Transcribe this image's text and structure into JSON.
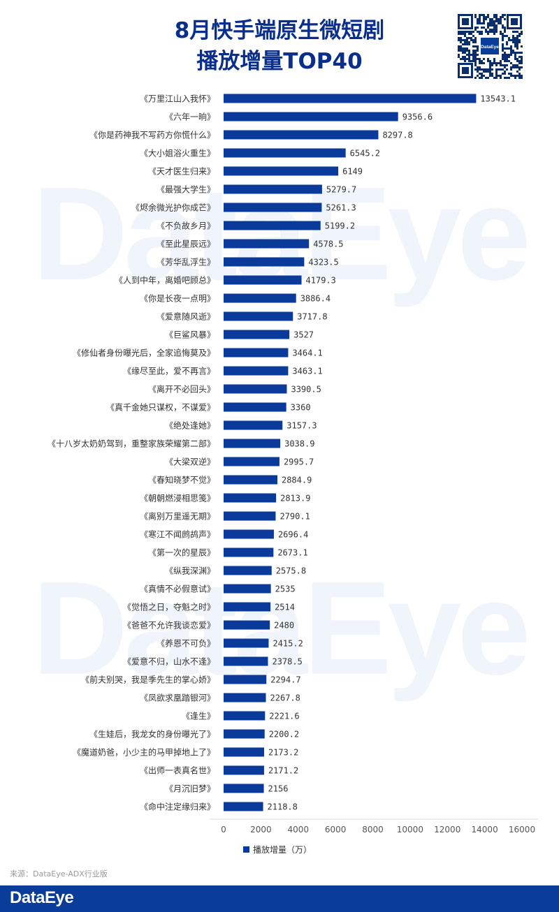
{
  "header": {
    "title_line1": "8月快手端原生微短剧",
    "title_line2": "播放增量TOP40"
  },
  "watermark": "DataEye",
  "qr": {
    "logo_text": "DataEye"
  },
  "footer": {
    "source": "来源：DataEye-ADX行业版",
    "brand": "DataEye"
  },
  "colors": {
    "bar": "#0a3a9a",
    "title": "#0a2e8c",
    "footer": "#0a3d9a"
  },
  "chart_data": {
    "type": "bar",
    "orientation": "horizontal",
    "categories": [
      "《万里江山入我怀》",
      "《六年一晌》",
      "《你是药神我不写药方你慌什么》",
      "《大小姐浴火重生》",
      "《天才医生归来》",
      "《最强大学生》",
      "《烬余微光护你成芒》",
      "《不负故乡月》",
      "《至此星辰远》",
      "《芳华乱浮生》",
      "《人到中年，离婚吧顾总》",
      "《你是长夜一点明》",
      "《爱意随风逝》",
      "《巨鲨风暴》",
      "《修仙者身份曝光后，全家追悔莫及》",
      "《缘尽至此，爱不再言》",
      "《离开不必回头》",
      "《真千金她只谋权，不谋爱》",
      "《绝处逢她》",
      "《十八岁太奶奶驾到，重整家族荣耀第二部》",
      "《大梁双逆》",
      "《春知晓梦不觉》",
      "《朝朝燃浸相思笺》",
      "《离别万里遥无期》",
      "《寒江不闻鹧鸪声》",
      "《第一次的星辰》",
      "《纵我深渊》",
      "《真情不必假意试》",
      "《觉悟之日，夺魁之时》",
      "《爸爸不允许我谈恋爱》",
      "《养恩不可负》",
      "《爱意不归，山水不逢》",
      "《前夫别哭，我是季先生的掌心娇》",
      "《凤欲求凰踏银河》",
      "《逢生》",
      "《生娃后，我龙女的身份曝光了》",
      "《魔道奶爸，小少主的马甲掉地上了》",
      "《出师一表真名世》",
      "《月沉旧梦》",
      "《命中注定缘归来》"
    ],
    "values": [
      13543.1,
      9356.6,
      8297.8,
      6545.2,
      6149,
      5279.7,
      5261.3,
      5199.2,
      4578.5,
      4323.5,
      4179.3,
      3886.4,
      3717.8,
      3527,
      3464.1,
      3463.1,
      3390.5,
      3360,
      3157.3,
      3038.9,
      2995.7,
      2884.9,
      2813.9,
      2790.1,
      2696.4,
      2673.1,
      2575.8,
      2535,
      2514,
      2480,
      2415.2,
      2378.5,
      2294.7,
      2267.8,
      2221.6,
      2200.2,
      2173.2,
      2171.2,
      2156,
      2118.8
    ],
    "value_labels": [
      "13543.1",
      "9356.6",
      "8297.8",
      "6545.2",
      "6149",
      "5279.7",
      "5261.3",
      "5199.2",
      "4578.5",
      "4323.5",
      "4179.3",
      "3886.4",
      "3717.8",
      "3527",
      "3464.1",
      "3463.1",
      "3390.5",
      "3360",
      "3157.3",
      "3038.9",
      "2995.7",
      "2884.9",
      "2813.9",
      "2790.1",
      "2696.4",
      "2673.1",
      "2575.8",
      "2535",
      "2514",
      "2480",
      "2415.2",
      "2378.5",
      "2294.7",
      "2267.8",
      "2221.6",
      "2200.2",
      "2173.2",
      "2171.2",
      "2156",
      "2118.8"
    ],
    "series_name": "播放增量（万）",
    "xlim": [
      0,
      16000
    ],
    "xticks": [
      0,
      2000,
      4000,
      6000,
      8000,
      10000,
      12000,
      14000,
      16000
    ],
    "grid": false,
    "legend": "bottom"
  }
}
